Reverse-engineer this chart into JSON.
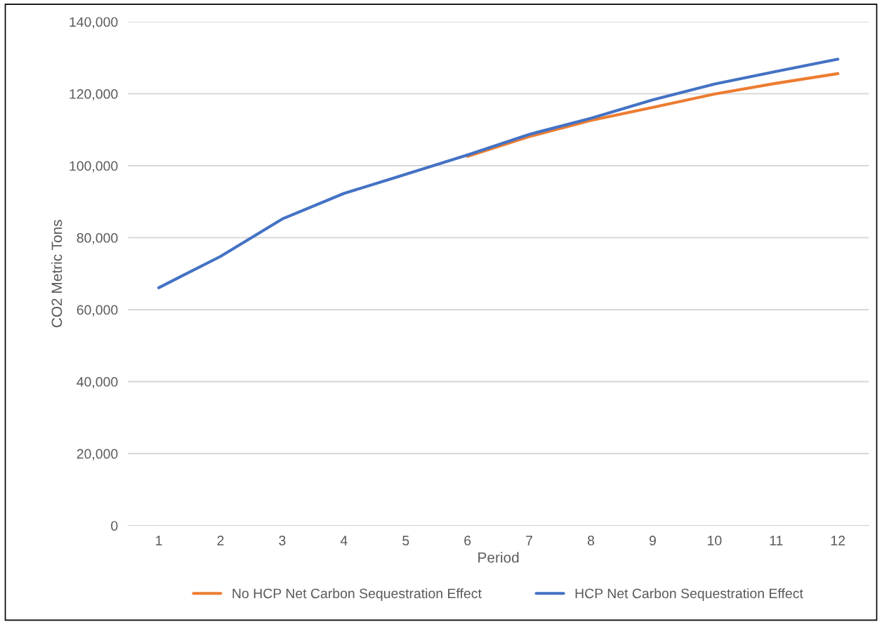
{
  "chart_data": {
    "type": "line",
    "xlabel": "Period",
    "ylabel": "CO2 Metric Tons",
    "categories": [
      "1",
      "2",
      "3",
      "4",
      "5",
      "6",
      "7",
      "8",
      "9",
      "10",
      "11",
      "12"
    ],
    "series": [
      {
        "name": "No HCP Net Carbon Sequestration Effect",
        "color": "#ed7d31",
        "values": [
          null,
          null,
          null,
          null,
          null,
          102600,
          108100,
          112600,
          116200,
          119900,
          122900,
          125600
        ]
      },
      {
        "name": "HCP Net Carbon Sequestration Effect",
        "color": "#4472c4",
        "values": [
          66100,
          74800,
          85200,
          92300,
          97600,
          103000,
          108700,
          113200,
          118300,
          122700,
          126200,
          129600
        ]
      }
    ],
    "ylim": [
      0,
      140000
    ],
    "yticks": [
      {
        "value": 0,
        "label": "0"
      },
      {
        "value": 20000,
        "label": "20,000"
      },
      {
        "value": 40000,
        "label": "40,000"
      },
      {
        "value": 60000,
        "label": "60,000"
      },
      {
        "value": 80000,
        "label": "80,000"
      },
      {
        "value": 100000,
        "label": "100,000"
      },
      {
        "value": 120000,
        "label": "120,000"
      },
      {
        "value": 140000,
        "label": "140,000"
      }
    ],
    "grid": "y",
    "legend": "bottom",
    "marker": "none",
    "line_style": "solid"
  }
}
